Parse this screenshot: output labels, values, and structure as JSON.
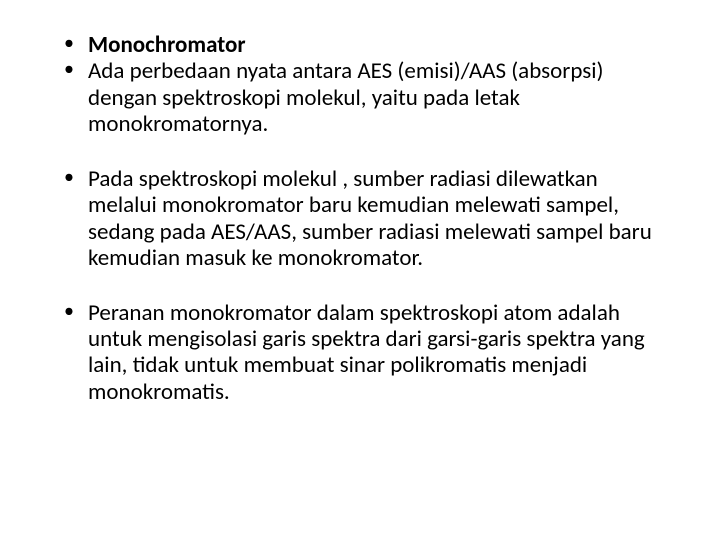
{
  "slide": {
    "background_color": "#ffffff",
    "text_color": "#000000",
    "font_family": "Calibri",
    "font_size_pt": 23,
    "line_height": 1.15,
    "bullet_char": "•",
    "groups": [
      {
        "items": [
          {
            "text": "Monochromator",
            "bold": true
          },
          {
            "text": " Ada perbedaan nyata antara AES (emisi)/AAS (absorpsi) dengan spektroskopi molekul, yaitu pada letak monokromatornya.",
            "bold": false
          }
        ]
      },
      {
        "items": [
          {
            "text": "Pada spektroskopi molekul , sumber radiasi dilewatkan melalui monokromator baru kemudian melewati sampel, sedang pada AES/AAS, sumber radiasi melewati sampel baru kemudian masuk ke monokromator.",
            "bold": false
          }
        ]
      },
      {
        "items": [
          {
            "text": " Peranan monokromator dalam spektroskopi atom adalah untuk mengisolasi garis spektra dari garsi-garis spektra yang lain, tidak untuk membuat sinar polikromatis menjadi monokromatis.",
            "bold": false
          }
        ]
      }
    ]
  }
}
